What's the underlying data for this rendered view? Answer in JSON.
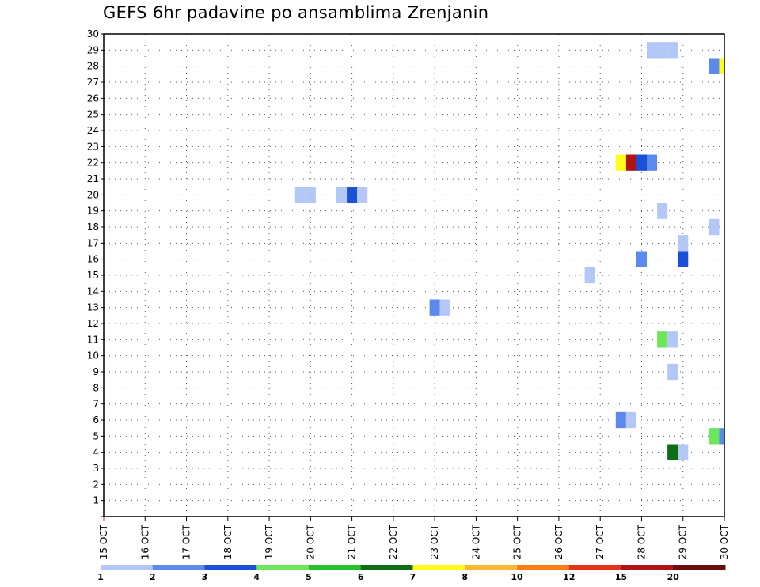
{
  "title": "GEFS 6hr padavine po ansamblima Zrenjanin",
  "chart_data": {
    "type": "heatmap",
    "title": "GEFS 6hr padavine po ansamblima Zrenjanin",
    "xlabel": "",
    "ylabel": "",
    "x_ticks": [
      "15 OCT",
      "16 OCT",
      "17 OCT",
      "18 OCT",
      "19 OCT",
      "20 OCT",
      "21 OCT",
      "22 OCT",
      "23 OCT",
      "24 OCT",
      "25 OCT",
      "26 OCT",
      "27 OCT",
      "28 OCT",
      "29 OCT",
      "30 OCT"
    ],
    "x_range_days": [
      15,
      30
    ],
    "y_ticks": [
      1,
      2,
      3,
      4,
      5,
      6,
      7,
      8,
      9,
      10,
      11,
      12,
      13,
      14,
      15,
      16,
      17,
      18,
      19,
      20,
      21,
      22,
      23,
      24,
      25,
      26,
      27,
      28,
      29,
      30
    ],
    "y_range": [
      0,
      30
    ],
    "grid": "dotted",
    "colorbar": {
      "colors": [
        "#b3c8f7",
        "#5b89ec",
        "#1c4fd8",
        "#6ee65a",
        "#25c02a",
        "#0d6e13",
        "#ffff19",
        "#ffb733",
        "#ff7d12",
        "#e63317",
        "#b01313",
        "#6c0c0c"
      ],
      "labels": [
        "1",
        "2",
        "3",
        "4",
        "5",
        "6",
        "7",
        "8",
        "10",
        "12",
        "15",
        "20"
      ]
    },
    "cells": [
      {
        "member": 29,
        "day": 28.25,
        "value": 1
      },
      {
        "member": 29,
        "day": 28.5,
        "value": 1
      },
      {
        "member": 29,
        "day": 28.75,
        "value": 1
      },
      {
        "member": 28,
        "day": 29.75,
        "value": 2
      },
      {
        "member": 28,
        "day": 30.0,
        "value": 7
      },
      {
        "member": 22,
        "day": 27.5,
        "value": 7
      },
      {
        "member": 22,
        "day": 27.75,
        "value": 15
      },
      {
        "member": 22,
        "day": 28.0,
        "value": 3
      },
      {
        "member": 22,
        "day": 28.25,
        "value": 2
      },
      {
        "member": 20,
        "day": 19.75,
        "value": 1
      },
      {
        "member": 20,
        "day": 20.0,
        "value": 1
      },
      {
        "member": 20,
        "day": 20.75,
        "value": 1
      },
      {
        "member": 20,
        "day": 21.0,
        "value": 3
      },
      {
        "member": 20,
        "day": 21.25,
        "value": 1
      },
      {
        "member": 19,
        "day": 28.5,
        "value": 1
      },
      {
        "member": 18,
        "day": 29.75,
        "value": 1
      },
      {
        "member": 17,
        "day": 29.0,
        "value": 1
      },
      {
        "member": 16,
        "day": 28.0,
        "value": 2
      },
      {
        "member": 16,
        "day": 29.0,
        "value": 3
      },
      {
        "member": 15,
        "day": 26.75,
        "value": 1
      },
      {
        "member": 13,
        "day": 23.0,
        "value": 2
      },
      {
        "member": 13,
        "day": 23.25,
        "value": 1
      },
      {
        "member": 11,
        "day": 28.5,
        "value": 4
      },
      {
        "member": 11,
        "day": 28.75,
        "value": 1
      },
      {
        "member": 9,
        "day": 28.75,
        "value": 1
      },
      {
        "member": 6,
        "day": 27.5,
        "value": 2
      },
      {
        "member": 6,
        "day": 27.75,
        "value": 1
      },
      {
        "member": 5,
        "day": 29.75,
        "value": 4
      },
      {
        "member": 5,
        "day": 30.0,
        "value": 2
      },
      {
        "member": 4,
        "day": 28.75,
        "value": 6
      },
      {
        "member": 4,
        "day": 29.0,
        "value": 1
      }
    ]
  }
}
